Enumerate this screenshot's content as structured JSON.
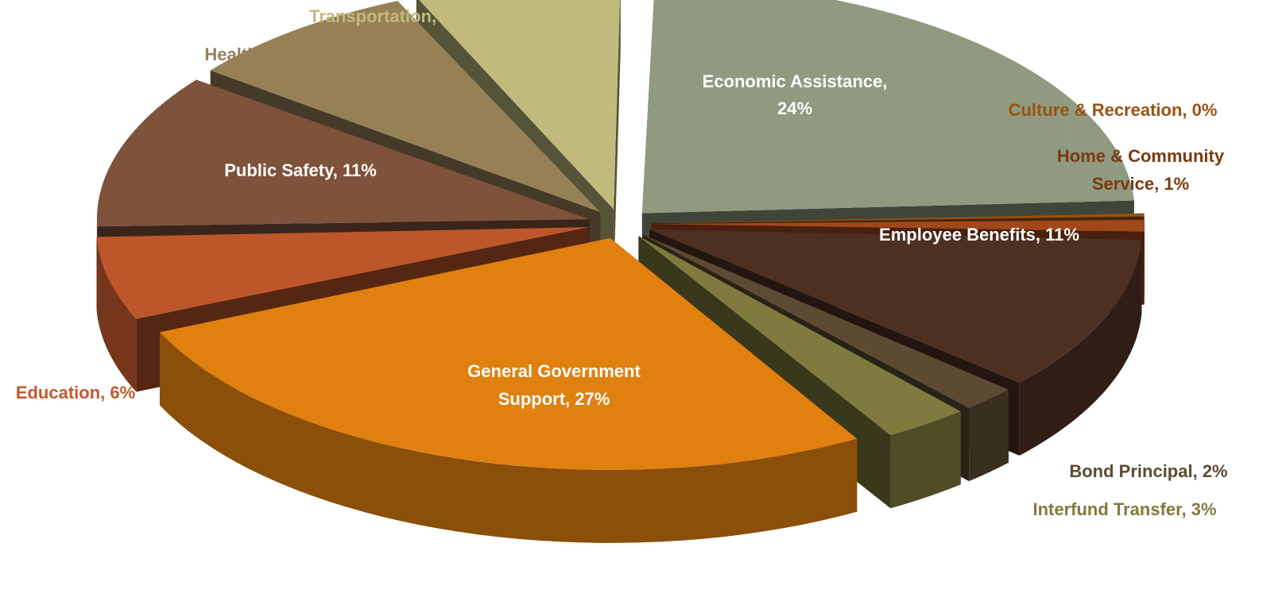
{
  "chart_data": {
    "type": "pie",
    "style": "3d-exploded",
    "legend": "none",
    "slices": [
      {
        "label": "Economic Assistance",
        "value": 24,
        "pct_text": "24%",
        "color": "#8f9a80"
      },
      {
        "label": "Culture & Recreation",
        "value": 0.4,
        "pct_text": "0%",
        "color": "#9a5210"
      },
      {
        "label": "Home & Community Service",
        "value": 1,
        "pct_text": "1%",
        "color": "#a0481c"
      },
      {
        "label": "Employee Benefits",
        "value": 11,
        "pct_text": "11%",
        "color": "#4e3023"
      },
      {
        "label": "Bond Principal",
        "value": 2,
        "pct_text": "2%",
        "color": "#5c4b32"
      },
      {
        "label": "Interfund Transfer",
        "value": 3,
        "pct_text": "3%",
        "color": "#7f7b3e"
      },
      {
        "label": "General Government Support",
        "value": 27,
        "pct_text": "27%",
        "color": "#e0800f"
      },
      {
        "label": "Education",
        "value": 6,
        "pct_text": "6%",
        "color": "#bd572b"
      },
      {
        "label": "Public Safety",
        "value": 11,
        "pct_text": "11%",
        "color": "#7f523c"
      },
      {
        "label": "Health",
        "value": 8,
        "pct_text": "8%",
        "color": "#968157"
      },
      {
        "label": "Transportation",
        "value": 7,
        "pct_text": "7%",
        "color": "#c0ba7c"
      }
    ]
  },
  "labels": {
    "economic_1": "Economic Assistance,",
    "economic_2": "24%",
    "culture": "Culture & Recreation, 0%",
    "home_1": "Home & Community",
    "home_2": "Service, 1%",
    "employee": "Employee Benefits, 11%",
    "bond": "Bond Principal, 2%",
    "interfund": "Interfund Transfer, 3%",
    "general_1": "General Government",
    "general_2": "Support, 27%",
    "education": "Education, 6%",
    "public_safety": "Public Safety, 11%",
    "health": "Health, 8%",
    "transportation": "Transportation, 7%"
  },
  "label_colors": {
    "inside": "#ffffff",
    "culture": "#9a5210",
    "home": "#7a3a10",
    "bond": "#5c4b32",
    "interfund": "#7f7b3e",
    "education": "#c05a2e",
    "health": "#968157",
    "transportation": "#c0ba7c"
  }
}
